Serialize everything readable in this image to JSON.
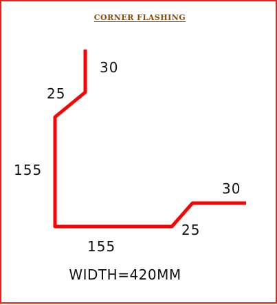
{
  "title": "CORNER  FLASHING",
  "dimensions": {
    "top_flange": "30",
    "top_bend": "25",
    "left_side": "155",
    "bottom_side": "155",
    "bottom_bend": "25",
    "right_flange": "30"
  },
  "width_label": "WIDTH=420MM",
  "colors": {
    "frame": "#ff1a1a",
    "profile": "#ff0000",
    "title": "#8b4a00",
    "text": "#111111"
  }
}
